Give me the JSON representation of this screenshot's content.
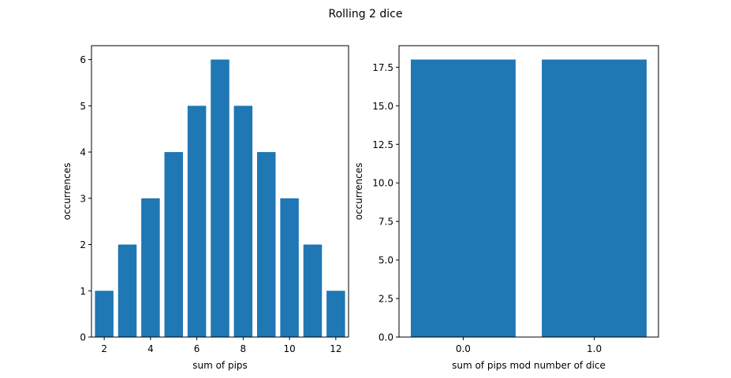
{
  "figure": {
    "title": "Rolling 2 dice"
  },
  "colors": {
    "bar": "#1f77b4",
    "axes": "#000000",
    "background": "#ffffff"
  },
  "chart_data": [
    {
      "type": "bar",
      "title": "",
      "x": [
        2,
        3,
        4,
        5,
        6,
        7,
        8,
        9,
        10,
        11,
        12
      ],
      "values": [
        1,
        2,
        3,
        4,
        5,
        6,
        5,
        4,
        3,
        2,
        1
      ],
      "bar_width": 0.8,
      "xlabel": "sum of pips",
      "ylabel": "occurrences",
      "xlim": [
        1.45,
        12.55
      ],
      "ylim": [
        0,
        6.3
      ],
      "xticks": [
        2,
        4,
        6,
        8,
        10,
        12
      ],
      "xtick_labels": [
        "2",
        "4",
        "6",
        "8",
        "10",
        "12"
      ],
      "yticks": [
        0,
        1,
        2,
        3,
        4,
        5,
        6
      ],
      "ytick_labels": [
        "0",
        "1",
        "2",
        "3",
        "4",
        "5",
        "6"
      ],
      "grid": false,
      "legend": "none"
    },
    {
      "type": "bar",
      "title": "",
      "x": [
        0,
        1
      ],
      "values": [
        18,
        18
      ],
      "bar_width": 0.8,
      "xlabel": "sum of pips mod number of dice",
      "ylabel": "occurrences",
      "xlim": [
        -0.49,
        1.49
      ],
      "ylim": [
        0,
        18.9
      ],
      "xticks": [
        0,
        1
      ],
      "xtick_labels": [
        "0.0",
        "1.0"
      ],
      "yticks": [
        0,
        2.5,
        5,
        7.5,
        10,
        12.5,
        15,
        17.5
      ],
      "ytick_labels": [
        "0.0",
        "2.5",
        "5.0",
        "7.5",
        "10.0",
        "12.5",
        "15.0",
        "17.5"
      ],
      "grid": false,
      "legend": "none"
    }
  ]
}
